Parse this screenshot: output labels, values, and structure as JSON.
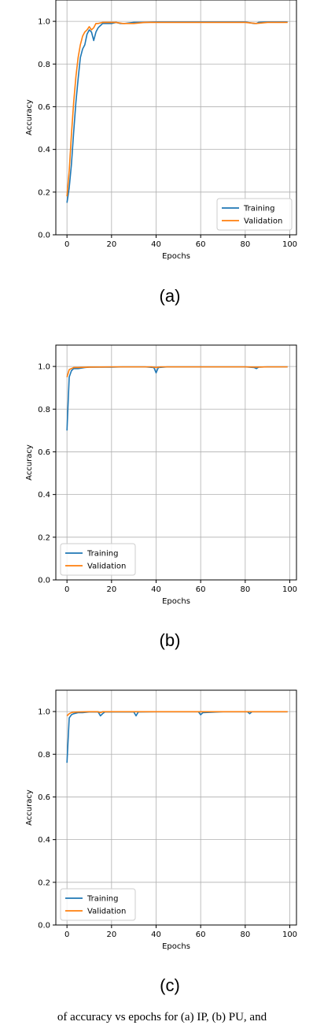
{
  "caption": "of accuracy vs epochs for (a) IP, (b) PU, and",
  "chart_data": [
    {
      "type": "line",
      "panel_label": "(a)",
      "xlabel": "Epochs",
      "ylabel": "Accuracy",
      "xlim": [
        -5,
        103
      ],
      "ylim": [
        0.0,
        1.1
      ],
      "xticks": [
        0,
        20,
        40,
        60,
        80,
        100
      ],
      "yticks": [
        0.0,
        0.2,
        0.4,
        0.6,
        0.8,
        1.0
      ],
      "ytick_labels": [
        "0.0",
        "0.2",
        "0.4",
        "0.6",
        "0.8",
        "1.0"
      ],
      "grid": true,
      "legend_position": "bottom-right",
      "series": [
        {
          "name": "Training",
          "color": "#1f77b4",
          "x": [
            0,
            1,
            2,
            3,
            4,
            5,
            6,
            7,
            8,
            9,
            10,
            11,
            12,
            13,
            14,
            15,
            16,
            18,
            20,
            22,
            24,
            26,
            30,
            35,
            40,
            45,
            50,
            55,
            60,
            65,
            70,
            75,
            80,
            84,
            85,
            86,
            90,
            95,
            99
          ],
          "y": [
            0.15,
            0.22,
            0.33,
            0.48,
            0.62,
            0.73,
            0.83,
            0.87,
            0.89,
            0.94,
            0.96,
            0.95,
            0.91,
            0.95,
            0.97,
            0.98,
            0.99,
            0.99,
            0.99,
            0.995,
            0.99,
            0.99,
            0.995,
            0.995,
            0.997,
            0.997,
            0.997,
            0.997,
            0.997,
            0.997,
            0.997,
            0.997,
            0.997,
            0.99,
            0.99,
            0.995,
            0.997,
            0.997,
            0.997
          ]
        },
        {
          "name": "Validation",
          "color": "#ff7f0e",
          "x": [
            0,
            1,
            2,
            3,
            4,
            5,
            6,
            7,
            8,
            9,
            10,
            11,
            12,
            13,
            14,
            16,
            18,
            20,
            22,
            25,
            30,
            35,
            40,
            45,
            50,
            55,
            60,
            65,
            70,
            75,
            80,
            85,
            90,
            95,
            99
          ],
          "y": [
            0.18,
            0.3,
            0.47,
            0.62,
            0.74,
            0.83,
            0.89,
            0.93,
            0.95,
            0.96,
            0.975,
            0.96,
            0.97,
            0.99,
            0.99,
            0.995,
            0.995,
            0.995,
            0.995,
            0.99,
            0.99,
            0.995,
            0.995,
            0.995,
            0.995,
            0.995,
            0.995,
            0.995,
            0.995,
            0.995,
            0.995,
            0.99,
            0.995,
            0.995,
            0.995
          ]
        }
      ]
    },
    {
      "type": "line",
      "panel_label": "(b)",
      "xlabel": "Epochs",
      "ylabel": "Accuracy",
      "xlim": [
        -5,
        103
      ],
      "ylim": [
        0.0,
        1.1
      ],
      "xticks": [
        0,
        20,
        40,
        60,
        80,
        100
      ],
      "yticks": [
        0.0,
        0.2,
        0.4,
        0.6,
        0.8,
        1.0
      ],
      "ytick_labels": [
        "0.0",
        "0.2",
        "0.4",
        "0.6",
        "0.8",
        "1.0"
      ],
      "grid": true,
      "legend_position": "bottom-left",
      "series": [
        {
          "name": "Training",
          "color": "#1f77b4",
          "x": [
            0,
            1,
            2,
            3,
            5,
            8,
            10,
            15,
            20,
            25,
            30,
            35,
            39,
            40,
            41,
            45,
            50,
            55,
            60,
            65,
            70,
            80,
            84,
            85,
            86,
            90,
            95,
            99
          ],
          "y": [
            0.7,
            0.95,
            0.98,
            0.99,
            0.99,
            0.995,
            0.997,
            0.997,
            0.997,
            0.998,
            0.998,
            0.998,
            0.995,
            0.97,
            0.995,
            0.998,
            0.998,
            0.998,
            0.998,
            0.998,
            0.998,
            0.998,
            0.995,
            0.99,
            0.997,
            0.998,
            0.998,
            0.998
          ]
        },
        {
          "name": "Validation",
          "color": "#ff7f0e",
          "x": [
            0,
            1,
            2,
            3,
            5,
            10,
            20,
            30,
            38,
            40,
            42,
            50,
            60,
            70,
            80,
            85,
            90,
            99
          ],
          "y": [
            0.95,
            0.985,
            0.99,
            0.995,
            0.995,
            0.997,
            0.998,
            0.998,
            0.998,
            0.995,
            0.998,
            0.998,
            0.998,
            0.998,
            0.998,
            0.997,
            0.998,
            0.998
          ]
        }
      ]
    },
    {
      "type": "line",
      "panel_label": "(c)",
      "xlabel": "Epochs",
      "ylabel": "Accuracy",
      "xlim": [
        -5,
        103
      ],
      "ylim": [
        0.0,
        1.1
      ],
      "xticks": [
        0,
        20,
        40,
        60,
        80,
        100
      ],
      "yticks": [
        0.0,
        0.2,
        0.4,
        0.6,
        0.8,
        1.0
      ],
      "ytick_labels": [
        "0.0",
        "0.2",
        "0.4",
        "0.6",
        "0.8",
        "1.0"
      ],
      "grid": true,
      "legend_position": "bottom-left",
      "series": [
        {
          "name": "Training",
          "color": "#1f77b4",
          "x": [
            0,
            1,
            2,
            3,
            5,
            7,
            10,
            14,
            15,
            16,
            17,
            20,
            30,
            31,
            32,
            40,
            50,
            59,
            60,
            61,
            70,
            81,
            82,
            83,
            90,
            99
          ],
          "y": [
            0.76,
            0.97,
            0.985,
            0.99,
            0.995,
            0.995,
            0.998,
            0.998,
            0.98,
            0.99,
            0.998,
            0.998,
            0.998,
            0.98,
            0.998,
            0.999,
            0.999,
            0.999,
            0.985,
            0.995,
            0.999,
            0.999,
            0.99,
            0.999,
            0.999,
            0.999
          ]
        },
        {
          "name": "Validation",
          "color": "#ff7f0e",
          "x": [
            0,
            1,
            2,
            3,
            5,
            10,
            14,
            15,
            16,
            20,
            30,
            40,
            50,
            60,
            70,
            80,
            90,
            99
          ],
          "y": [
            0.98,
            0.99,
            0.995,
            0.997,
            0.998,
            0.999,
            0.999,
            0.995,
            0.999,
            0.999,
            0.999,
            0.999,
            0.999,
            0.999,
            0.999,
            0.999,
            0.999,
            0.999
          ]
        }
      ]
    }
  ]
}
